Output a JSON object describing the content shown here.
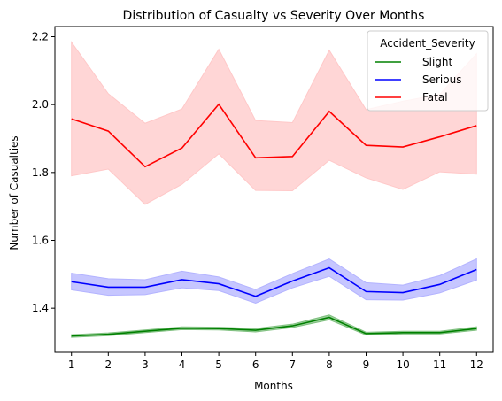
{
  "chart_data": {
    "type": "line",
    "title": "Distribution of Casualty vs Severity Over Months",
    "xlabel": "Months",
    "ylabel": "Number of Casualties",
    "x": [
      1,
      2,
      3,
      4,
      5,
      6,
      7,
      8,
      9,
      10,
      11,
      12
    ],
    "xlim": [
      0.55,
      12.45
    ],
    "ylim": [
      1.27,
      2.23
    ],
    "yticks": [
      1.4,
      1.6,
      1.8,
      2.0,
      2.2
    ],
    "grid": false,
    "legend": {
      "title": "Accident_Severity",
      "placement": "top-right"
    },
    "series": [
      {
        "name": "Slight",
        "color": "#008000",
        "band_color": "#7fc07f",
        "values": [
          1.318,
          1.323,
          1.332,
          1.341,
          1.34,
          1.335,
          1.348,
          1.373,
          1.325,
          1.328,
          1.328,
          1.34
        ],
        "lower": [
          1.314,
          1.319,
          1.328,
          1.337,
          1.336,
          1.33,
          1.343,
          1.366,
          1.321,
          1.324,
          1.324,
          1.335
        ],
        "upper": [
          1.322,
          1.327,
          1.336,
          1.345,
          1.344,
          1.34,
          1.353,
          1.38,
          1.329,
          1.332,
          1.332,
          1.345
        ]
      },
      {
        "name": "Serious",
        "color": "#0000ff",
        "band_color": "#b3b3ff",
        "values": [
          1.478,
          1.462,
          1.462,
          1.484,
          1.472,
          1.435,
          1.48,
          1.519,
          1.449,
          1.446,
          1.47,
          1.514
        ],
        "lower": [
          1.454,
          1.438,
          1.44,
          1.46,
          1.452,
          1.415,
          1.46,
          1.494,
          1.425,
          1.424,
          1.445,
          1.483
        ],
        "upper": [
          1.503,
          1.487,
          1.484,
          1.509,
          1.492,
          1.455,
          1.502,
          1.545,
          1.475,
          1.468,
          1.496,
          1.545
        ]
      },
      {
        "name": "Fatal",
        "color": "#ff0000",
        "band_color": "#ffc8c8",
        "values": [
          1.958,
          1.922,
          1.817,
          1.872,
          2.001,
          1.843,
          1.847,
          1.98,
          1.88,
          1.875,
          1.905,
          1.938
        ],
        "lower": [
          1.79,
          1.81,
          1.706,
          1.765,
          1.855,
          1.747,
          1.746,
          1.836,
          1.784,
          1.75,
          1.802,
          1.795
        ],
        "upper": [
          2.184,
          2.032,
          1.945,
          1.987,
          2.163,
          1.953,
          1.947,
          2.16,
          1.985,
          2.01,
          2.03,
          2.15
        ]
      }
    ]
  }
}
